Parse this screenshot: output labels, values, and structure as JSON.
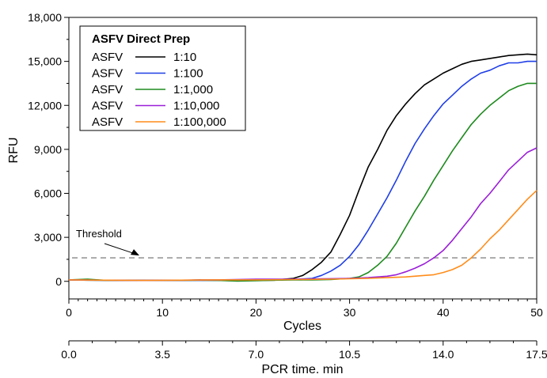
{
  "chart_data": {
    "type": "line",
    "xlabel": "Cycles",
    "ylabel": "RFU",
    "xlim": [
      0,
      50
    ],
    "ylim": [
      -1200,
      18000
    ],
    "x_ticks": [
      0,
      10,
      20,
      30,
      40,
      50
    ],
    "y_ticks": [
      0,
      3000,
      6000,
      9000,
      12000,
      15000,
      18000
    ],
    "y_tick_labels": [
      "0",
      "3,000",
      "6,000",
      "9,000",
      "12,000",
      "15,000",
      "18,000"
    ],
    "secondary_axis": {
      "label": "PCR time. min",
      "ticks": [
        "0.0",
        "3.5",
        "7.0",
        "10.5",
        "14.0",
        "17.5"
      ]
    },
    "legend": {
      "title": "ASFV Direct Prep",
      "position": "top-left",
      "box": true
    },
    "threshold": {
      "label": "Threshold",
      "value": 1600,
      "style": "dashed",
      "color": "#999999"
    },
    "grid": false,
    "series": [
      {
        "name": "1:10",
        "prefix": "ASFV",
        "color": "#000000",
        "x": [
          0,
          2,
          4,
          6,
          8,
          10,
          12,
          14,
          16,
          18,
          20,
          22,
          23,
          24,
          25,
          26,
          27,
          28,
          29,
          30,
          31,
          32,
          33,
          34,
          35,
          36,
          37,
          38,
          39,
          40,
          41,
          42,
          43,
          44,
          45,
          46,
          47,
          48,
          49,
          50
        ],
        "values": [
          100,
          80,
          70,
          60,
          60,
          70,
          70,
          90,
          80,
          40,
          60,
          80,
          150,
          200,
          400,
          800,
          1300,
          2000,
          3200,
          4500,
          6200,
          7800,
          9000,
          10300,
          11300,
          12100,
          12800,
          13400,
          13800,
          14200,
          14500,
          14800,
          15000,
          15100,
          15200,
          15300,
          15400,
          15450,
          15500,
          15450
        ]
      },
      {
        "name": "1:100",
        "prefix": "ASFV",
        "color": "#1f3ee6",
        "x": [
          0,
          4,
          8,
          12,
          16,
          18,
          20,
          22,
          24,
          26,
          27,
          28,
          29,
          30,
          31,
          32,
          33,
          34,
          35,
          36,
          37,
          38,
          39,
          40,
          41,
          42,
          43,
          44,
          45,
          46,
          47,
          48,
          49,
          50
        ],
        "values": [
          100,
          80,
          60,
          60,
          60,
          40,
          60,
          100,
          120,
          200,
          400,
          700,
          1100,
          1700,
          2500,
          3500,
          4600,
          5700,
          6900,
          8200,
          9400,
          10400,
          11300,
          12100,
          12700,
          13300,
          13800,
          14200,
          14400,
          14700,
          14900,
          14900,
          15000,
          15000
        ]
      },
      {
        "name": "1:1,000",
        "prefix": "ASFV",
        "color": "#1e8a1e",
        "x": [
          0,
          2,
          4,
          6,
          8,
          10,
          12,
          14,
          16,
          18,
          20,
          22,
          24,
          26,
          28,
          30,
          31,
          32,
          33,
          34,
          35,
          36,
          37,
          38,
          39,
          40,
          41,
          42,
          43,
          44,
          45,
          46,
          47,
          48,
          49,
          50
        ],
        "values": [
          100,
          150,
          60,
          80,
          60,
          60,
          70,
          80,
          60,
          20,
          40,
          80,
          100,
          100,
          120,
          200,
          300,
          600,
          1100,
          1700,
          2600,
          3700,
          4800,
          5800,
          6900,
          7900,
          8900,
          9800,
          10700,
          11400,
          12000,
          12500,
          13000,
          13300,
          13500,
          13500
        ]
      },
      {
        "name": "1:10,000",
        "prefix": "ASFV",
        "color": "#9a1fd8",
        "x": [
          0,
          4,
          8,
          12,
          16,
          20,
          24,
          28,
          30,
          32,
          34,
          35,
          36,
          37,
          38,
          39,
          40,
          41,
          42,
          43,
          44,
          45,
          46,
          47,
          48,
          49,
          50
        ],
        "values": [
          100,
          80,
          60,
          80,
          100,
          150,
          150,
          180,
          200,
          250,
          350,
          450,
          650,
          900,
          1200,
          1600,
          2100,
          2800,
          3600,
          4400,
          5300,
          6000,
          6800,
          7600,
          8200,
          8800,
          9100
        ]
      },
      {
        "name": "1:100,000",
        "prefix": "ASFV",
        "color": "#ff8c1a",
        "x": [
          0,
          4,
          8,
          12,
          16,
          20,
          24,
          28,
          32,
          34,
          36,
          38,
          39,
          40,
          41,
          42,
          43,
          44,
          45,
          46,
          47,
          48,
          49,
          50
        ],
        "values": [
          100,
          80,
          60,
          80,
          100,
          100,
          120,
          150,
          200,
          250,
          300,
          400,
          450,
          600,
          800,
          1100,
          1600,
          2200,
          2900,
          3500,
          4200,
          4900,
          5600,
          6200
        ]
      }
    ]
  }
}
